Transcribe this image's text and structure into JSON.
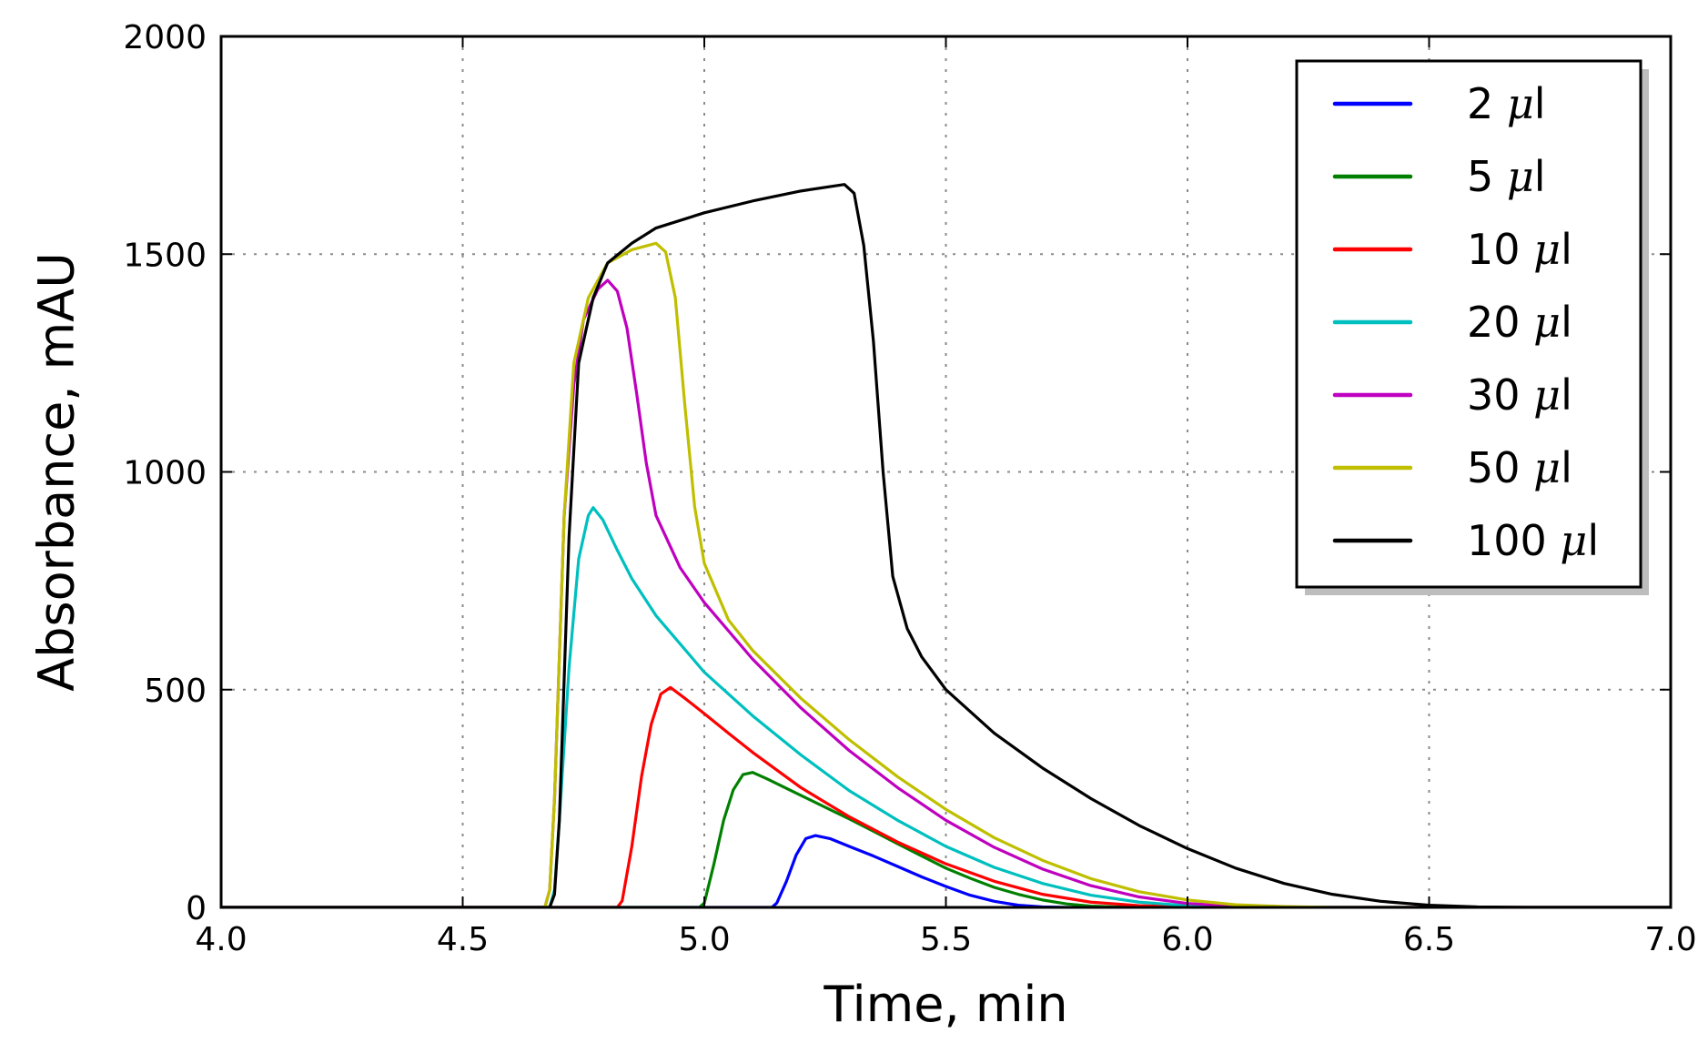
{
  "chart_data": {
    "type": "line",
    "title": "",
    "xlabel": "Time, min",
    "ylabel": "Absorbance, mAU",
    "xlim": [
      4.0,
      7.0
    ],
    "ylim": [
      0,
      2000
    ],
    "xticks": [
      4.0,
      4.5,
      5.0,
      5.5,
      6.0,
      6.5,
      7.0
    ],
    "xtick_labels": [
      "4.0",
      "4.5",
      "5.0",
      "5.5",
      "6.0",
      "6.5",
      "7.0"
    ],
    "yticks": [
      0,
      500,
      1000,
      1500,
      2000
    ],
    "ytick_labels": [
      "0",
      "500",
      "1000",
      "1500",
      "2000"
    ],
    "grid": true,
    "legend_position": "top-right",
    "series": [
      {
        "name": "2 μl",
        "label_num": "2",
        "label_unit": "l",
        "color": "#0000ff",
        "points": [
          [
            4.0,
            0
          ],
          [
            5.14,
            0
          ],
          [
            5.15,
            10
          ],
          [
            5.17,
            60
          ],
          [
            5.19,
            120
          ],
          [
            5.21,
            158
          ],
          [
            5.23,
            165
          ],
          [
            5.26,
            158
          ],
          [
            5.3,
            140
          ],
          [
            5.35,
            118
          ],
          [
            5.4,
            94
          ],
          [
            5.45,
            70
          ],
          [
            5.5,
            48
          ],
          [
            5.55,
            28
          ],
          [
            5.6,
            14
          ],
          [
            5.65,
            5
          ],
          [
            5.7,
            1
          ],
          [
            5.75,
            0
          ],
          [
            7.0,
            0
          ]
        ]
      },
      {
        "name": "5 μl",
        "label_num": "5",
        "label_unit": "l",
        "color": "#008000",
        "points": [
          [
            4.0,
            0
          ],
          [
            4.99,
            0
          ],
          [
            5.0,
            10
          ],
          [
            5.02,
            100
          ],
          [
            5.04,
            200
          ],
          [
            5.06,
            270
          ],
          [
            5.08,
            305
          ],
          [
            5.1,
            310
          ],
          [
            5.13,
            295
          ],
          [
            5.18,
            268
          ],
          [
            5.25,
            230
          ],
          [
            5.3,
            203
          ],
          [
            5.35,
            175
          ],
          [
            5.4,
            146
          ],
          [
            5.45,
            118
          ],
          [
            5.5,
            90
          ],
          [
            5.55,
            67
          ],
          [
            5.6,
            46
          ],
          [
            5.65,
            30
          ],
          [
            5.7,
            17
          ],
          [
            5.75,
            8
          ],
          [
            5.8,
            3
          ],
          [
            5.85,
            1
          ],
          [
            5.9,
            0
          ],
          [
            7.0,
            0
          ]
        ]
      },
      {
        "name": "10 μl",
        "label_num": "10",
        "label_unit": "l",
        "color": "#ff0000",
        "points": [
          [
            4.0,
            0
          ],
          [
            4.82,
            0
          ],
          [
            4.83,
            15
          ],
          [
            4.85,
            140
          ],
          [
            4.87,
            300
          ],
          [
            4.89,
            420
          ],
          [
            4.91,
            490
          ],
          [
            4.93,
            505
          ],
          [
            4.96,
            480
          ],
          [
            5.0,
            445
          ],
          [
            5.05,
            400
          ],
          [
            5.1,
            356
          ],
          [
            5.2,
            275
          ],
          [
            5.3,
            208
          ],
          [
            5.4,
            150
          ],
          [
            5.5,
            100
          ],
          [
            5.6,
            60
          ],
          [
            5.7,
            30
          ],
          [
            5.8,
            12
          ],
          [
            5.9,
            4
          ],
          [
            6.0,
            1
          ],
          [
            6.05,
            0
          ],
          [
            7.0,
            0
          ]
        ]
      },
      {
        "name": "20 μl",
        "label_num": "20",
        "label_unit": "l",
        "color": "#00bfbf",
        "points": [
          [
            4.0,
            0
          ],
          [
            4.68,
            0
          ],
          [
            4.69,
            40
          ],
          [
            4.7,
            200
          ],
          [
            4.72,
            550
          ],
          [
            4.74,
            800
          ],
          [
            4.76,
            900
          ],
          [
            4.77,
            918
          ],
          [
            4.79,
            890
          ],
          [
            4.82,
            820
          ],
          [
            4.85,
            755
          ],
          [
            4.9,
            670
          ],
          [
            5.0,
            540
          ],
          [
            5.1,
            440
          ],
          [
            5.2,
            350
          ],
          [
            5.3,
            268
          ],
          [
            5.4,
            200
          ],
          [
            5.5,
            140
          ],
          [
            5.6,
            92
          ],
          [
            5.7,
            55
          ],
          [
            5.8,
            28
          ],
          [
            5.9,
            12
          ],
          [
            6.0,
            4
          ],
          [
            6.1,
            1
          ],
          [
            6.15,
            0
          ],
          [
            7.0,
            0
          ]
        ]
      },
      {
        "name": "30 μl",
        "label_num": "30",
        "label_unit": "l",
        "color": "#bf00bf",
        "points": [
          [
            4.0,
            0
          ],
          [
            4.67,
            0
          ],
          [
            4.68,
            40
          ],
          [
            4.69,
            250
          ],
          [
            4.71,
            900
          ],
          [
            4.73,
            1200
          ],
          [
            4.75,
            1350
          ],
          [
            4.78,
            1420
          ],
          [
            4.8,
            1440
          ],
          [
            4.82,
            1415
          ],
          [
            4.84,
            1330
          ],
          [
            4.86,
            1180
          ],
          [
            4.88,
            1020
          ],
          [
            4.9,
            900
          ],
          [
            4.95,
            780
          ],
          [
            5.0,
            700
          ],
          [
            5.1,
            570
          ],
          [
            5.2,
            458
          ],
          [
            5.3,
            360
          ],
          [
            5.4,
            275
          ],
          [
            5.5,
            200
          ],
          [
            5.6,
            138
          ],
          [
            5.7,
            88
          ],
          [
            5.8,
            50
          ],
          [
            5.9,
            24
          ],
          [
            6.0,
            9
          ],
          [
            6.1,
            3
          ],
          [
            6.2,
            0
          ],
          [
            7.0,
            0
          ]
        ]
      },
      {
        "name": "50 μl",
        "label_num": "50",
        "label_unit": "l",
        "color": "#bfbf00",
        "points": [
          [
            4.0,
            0
          ],
          [
            4.67,
            0
          ],
          [
            4.68,
            40
          ],
          [
            4.69,
            250
          ],
          [
            4.71,
            900
          ],
          [
            4.73,
            1250
          ],
          [
            4.76,
            1400
          ],
          [
            4.8,
            1480
          ],
          [
            4.85,
            1510
          ],
          [
            4.9,
            1525
          ],
          [
            4.92,
            1505
          ],
          [
            4.94,
            1400
          ],
          [
            4.96,
            1150
          ],
          [
            4.98,
            920
          ],
          [
            5.0,
            790
          ],
          [
            5.05,
            660
          ],
          [
            5.1,
            590
          ],
          [
            5.2,
            480
          ],
          [
            5.3,
            385
          ],
          [
            5.4,
            300
          ],
          [
            5.5,
            225
          ],
          [
            5.6,
            160
          ],
          [
            5.7,
            108
          ],
          [
            5.8,
            66
          ],
          [
            5.9,
            36
          ],
          [
            6.0,
            17
          ],
          [
            6.1,
            6
          ],
          [
            6.2,
            2
          ],
          [
            6.3,
            0
          ],
          [
            7.0,
            0
          ]
        ]
      },
      {
        "name": "100 μl",
        "label_num": "100",
        "label_unit": "l",
        "color": "#000000",
        "points": [
          [
            4.0,
            0
          ],
          [
            4.68,
            0
          ],
          [
            4.69,
            30
          ],
          [
            4.7,
            200
          ],
          [
            4.72,
            850
          ],
          [
            4.74,
            1250
          ],
          [
            4.77,
            1400
          ],
          [
            4.8,
            1480
          ],
          [
            4.85,
            1525
          ],
          [
            4.9,
            1560
          ],
          [
            5.0,
            1595
          ],
          [
            5.1,
            1622
          ],
          [
            5.2,
            1645
          ],
          [
            5.29,
            1660
          ],
          [
            5.31,
            1640
          ],
          [
            5.33,
            1520
          ],
          [
            5.35,
            1300
          ],
          [
            5.37,
            1000
          ],
          [
            5.39,
            760
          ],
          [
            5.42,
            640
          ],
          [
            5.45,
            575
          ],
          [
            5.5,
            500
          ],
          [
            5.6,
            400
          ],
          [
            5.7,
            320
          ],
          [
            5.8,
            250
          ],
          [
            5.9,
            188
          ],
          [
            6.0,
            135
          ],
          [
            6.1,
            90
          ],
          [
            6.2,
            55
          ],
          [
            6.3,
            30
          ],
          [
            6.4,
            14
          ],
          [
            6.5,
            5
          ],
          [
            6.6,
            1
          ],
          [
            6.7,
            0
          ],
          [
            7.0,
            0
          ]
        ]
      }
    ]
  }
}
